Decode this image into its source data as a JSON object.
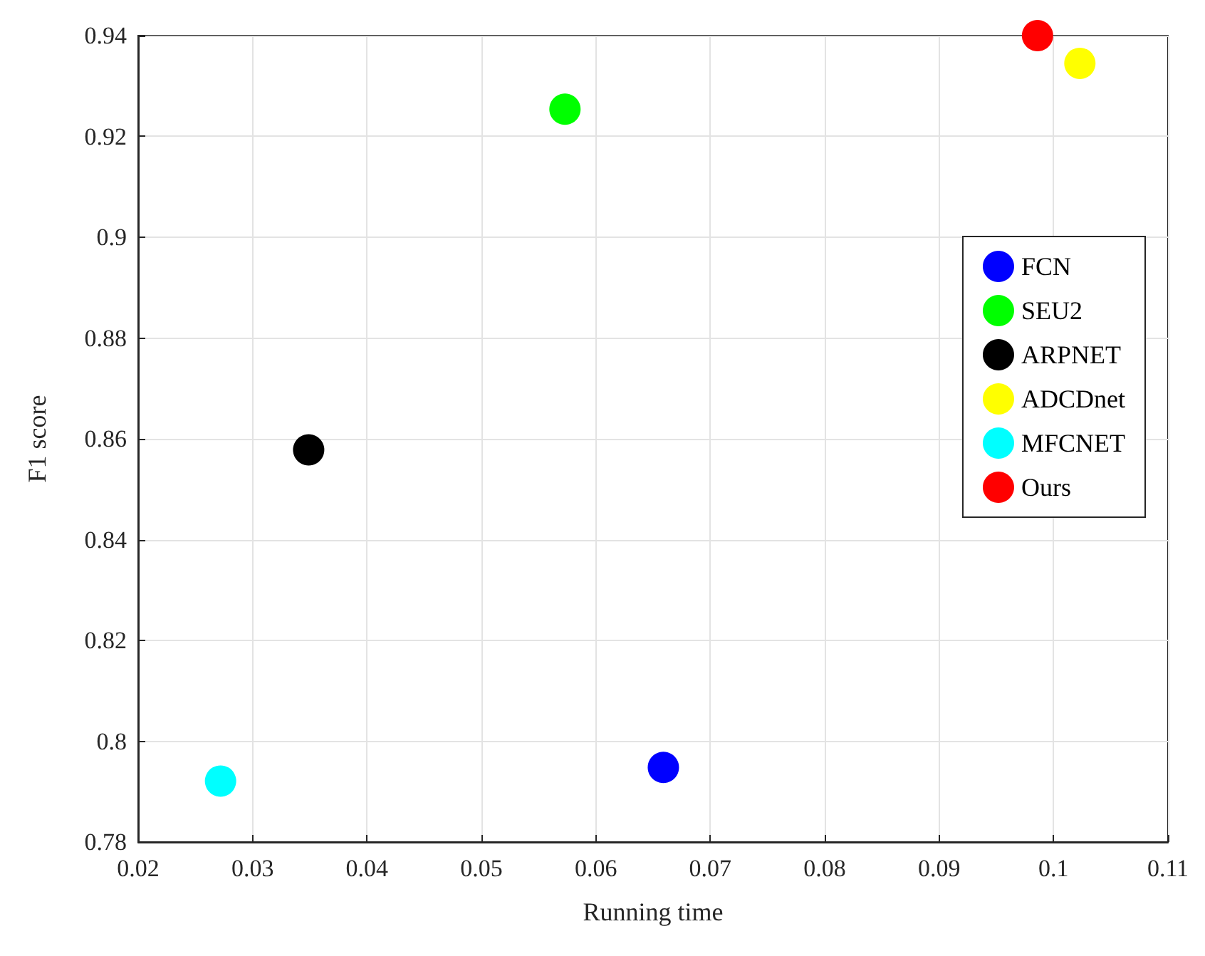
{
  "chart_data": {
    "type": "scatter",
    "xlabel": "Running time",
    "ylabel": "F1 score",
    "series": [
      {
        "name": "FCN",
        "color": "#0000ff",
        "x": [
          0.0659
        ],
        "values": [
          0.7948
        ]
      },
      {
        "name": "SEU2",
        "color": "#00ff00",
        "x": [
          0.0573
        ],
        "values": [
          0.9254
        ]
      },
      {
        "name": "ARPNET",
        "color": "#000000",
        "x": [
          0.0349
        ],
        "values": [
          0.8578
        ]
      },
      {
        "name": "ADCDnet",
        "color": "#ffff00",
        "x": [
          0.1023
        ],
        "values": [
          0.9345
        ]
      },
      {
        "name": "MFCNET",
        "color": "#00ffff",
        "x": [
          0.0272
        ],
        "values": [
          0.7921
        ]
      },
      {
        "name": "Ours",
        "color": "#ff0000",
        "x": [
          0.0986
        ],
        "values": [
          0.94
        ]
      }
    ],
    "xlim": [
      0.02,
      0.11
    ],
    "xticks": [
      0.02,
      0.03,
      0.04,
      0.05,
      0.06,
      0.07,
      0.08,
      0.09,
      0.1,
      0.11
    ],
    "ylim": [
      0.78,
      0.94
    ],
    "yticks": [
      0.78,
      0.8,
      0.82,
      0.84,
      0.86,
      0.88,
      0.9,
      0.92,
      0.94
    ],
    "grid": true,
    "legend": "right",
    "marker": "circle"
  }
}
